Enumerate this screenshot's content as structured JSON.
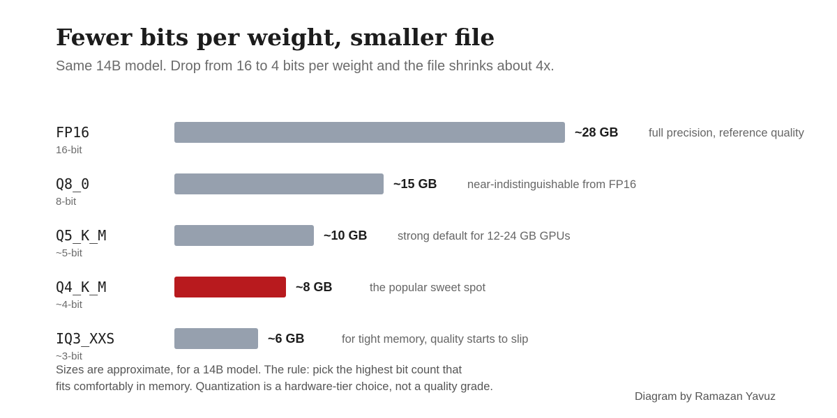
{
  "title": "Fewer bits per weight, smaller file",
  "subtitle": "Same 14B model. Drop from 16 to 4 bits per weight and the file shrinks about 4x.",
  "chart_data": {
    "type": "bar",
    "orientation": "horizontal",
    "categories": [
      "FP16",
      "Q8_0",
      "Q5_K_M",
      "Q4_K_M",
      "IQ3_XXS"
    ],
    "sublabels": [
      "16-bit",
      "8-bit",
      "~5-bit",
      "~4-bit",
      "~3-bit"
    ],
    "values": [
      28,
      15,
      10,
      8,
      6
    ],
    "value_labels": [
      "~28 GB",
      "~15 GB",
      "~10 GB",
      "~8 GB",
      "~6 GB"
    ],
    "annotations": [
      "full precision, reference quality",
      "near-indistinguishable from FP16",
      "strong default for 12-24 GB GPUs",
      "the popular sweet spot",
      "for tight memory, quality starts to slip"
    ],
    "highlight_index": 3,
    "colors": {
      "bar": "#96a0ae",
      "highlight": "#b81a1e",
      "label": "#1c1c1c",
      "sublabel": "#6b6b6b",
      "annotation": "#666666"
    },
    "grid": false,
    "legend": "none"
  },
  "footnote": {
    "line1": "Sizes are approximate, for a 14B model. The rule: pick the highest bit count that",
    "line2": "fits comfortably in memory. Quantization is a hardware-tier choice, not a quality grade."
  },
  "credit": "Diagram by Ramazan Yavuz"
}
